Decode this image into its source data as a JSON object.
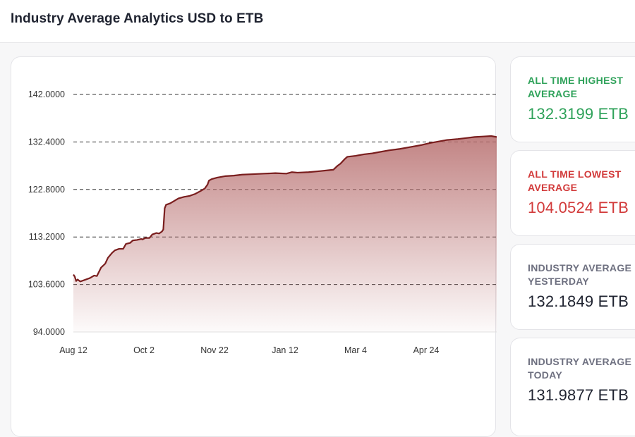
{
  "header": {
    "title": "Industry Average Analytics USD to ETB"
  },
  "chart_data": {
    "type": "area",
    "yticks": [
      "94.0000",
      "103.6000",
      "113.2000",
      "122.8000",
      "132.4000",
      "142.0000"
    ],
    "ylim": [
      94,
      142
    ],
    "xticks": [
      {
        "label": "Aug 12",
        "day": 0
      },
      {
        "label": "Oct 2",
        "day": 51
      },
      {
        "label": "Nov 22",
        "day": 102
      },
      {
        "label": "Jan 12",
        "day": 153
      },
      {
        "label": "Mar 4",
        "day": 204
      },
      {
        "label": "Apr 24",
        "day": 255
      }
    ],
    "xlim": [
      0,
      306
    ],
    "grid": "horizontal dashed",
    "line_color": "#7a1e1e",
    "fill_color": "#b76e6e",
    "series": [
      {
        "points": [
          [
            0,
            105.6
          ],
          [
            1,
            105.2
          ],
          [
            2,
            104.3
          ],
          [
            3,
            104.6
          ],
          [
            5,
            104.2
          ],
          [
            8,
            104.5
          ],
          [
            12,
            104.9
          ],
          [
            15,
            105.4
          ],
          [
            17,
            105.3
          ],
          [
            20,
            107.0
          ],
          [
            23,
            107.8
          ],
          [
            25,
            109.0
          ],
          [
            28,
            110.0
          ],
          [
            30,
            110.5
          ],
          [
            33,
            110.8
          ],
          [
            36,
            110.8
          ],
          [
            38,
            111.8
          ],
          [
            41,
            112.0
          ],
          [
            43,
            112.5
          ],
          [
            46,
            112.6
          ],
          [
            49,
            112.8
          ],
          [
            50,
            112.7
          ],
          [
            52,
            113.0
          ],
          [
            55,
            113.0
          ],
          [
            57,
            113.7
          ],
          [
            60,
            114.0
          ],
          [
            62,
            113.9
          ],
          [
            64,
            114.3
          ],
          [
            65,
            114.7
          ],
          [
            66,
            119.0
          ],
          [
            67,
            119.7
          ],
          [
            70,
            120.0
          ],
          [
            73,
            120.5
          ],
          [
            76,
            121.0
          ],
          [
            80,
            121.3
          ],
          [
            84,
            121.5
          ],
          [
            88,
            121.9
          ],
          [
            92,
            122.5
          ],
          [
            95,
            123.0
          ],
          [
            97,
            123.8
          ],
          [
            98,
            124.6
          ],
          [
            100,
            124.9
          ],
          [
            104,
            125.2
          ],
          [
            110,
            125.5
          ],
          [
            116,
            125.6
          ],
          [
            122,
            125.8
          ],
          [
            130,
            125.9
          ],
          [
            138,
            126.0
          ],
          [
            146,
            126.1
          ],
          [
            154,
            126.0
          ],
          [
            158,
            126.3
          ],
          [
            162,
            126.2
          ],
          [
            170,
            126.3
          ],
          [
            178,
            126.5
          ],
          [
            188,
            126.8
          ],
          [
            191,
            127.6
          ],
          [
            193,
            128.0
          ],
          [
            196,
            128.9
          ],
          [
            198,
            129.4
          ],
          [
            204,
            129.6
          ],
          [
            210,
            129.9
          ],
          [
            216,
            130.1
          ],
          [
            220,
            130.3
          ],
          [
            228,
            130.7
          ],
          [
            236,
            131.0
          ],
          [
            244,
            131.4
          ],
          [
            252,
            131.8
          ],
          [
            258,
            132.2
          ],
          [
            262,
            132.4
          ],
          [
            270,
            132.8
          ],
          [
            278,
            133.0
          ],
          [
            284,
            133.2
          ],
          [
            290,
            133.4
          ],
          [
            296,
            133.5
          ],
          [
            302,
            133.6
          ],
          [
            306,
            133.4
          ]
        ]
      }
    ]
  },
  "stats": [
    {
      "label": "ALL TIME HIGHEST AVERAGE",
      "value": "132.3199 ETB",
      "color": "#2fa25a",
      "value_color": "#2fa25a"
    },
    {
      "label": "ALL TIME LOWEST AVERAGE",
      "value": "104.0524 ETB",
      "color": "#d23a3a",
      "value_color": "#d23a3a"
    },
    {
      "label": "INDUSTRY AVERAGE YESTERDAY",
      "value": "132.1849 ETB",
      "color": "#6e7080",
      "value_color": "#1f2330"
    },
    {
      "label": "INDUSTRY AVERAGE TODAY",
      "value": "131.9877 ETB",
      "color": "#6e7080",
      "value_color": "#1f2330"
    }
  ]
}
